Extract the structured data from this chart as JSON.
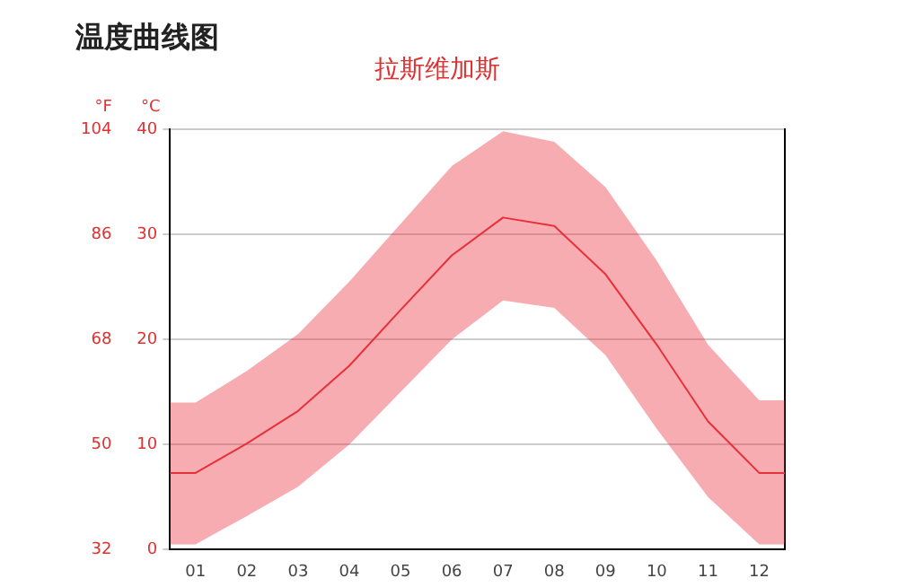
{
  "chart_data": {
    "type": "line",
    "title": "温度曲线图",
    "subtitle": "拉斯维加斯",
    "ylabel": "°C",
    "y2label": "°F",
    "xlim": [
      0.5,
      12.5
    ],
    "xticks": [
      {
        "value": 1,
        "label": "01"
      },
      {
        "value": 2,
        "label": "02"
      },
      {
        "value": 3,
        "label": "03"
      },
      {
        "value": 4,
        "label": "04"
      },
      {
        "value": 5,
        "label": "05"
      },
      {
        "value": 6,
        "label": "06"
      },
      {
        "value": 7,
        "label": "07"
      },
      {
        "value": 8,
        "label": "08"
      },
      {
        "value": 9,
        "label": "09"
      },
      {
        "value": 10,
        "label": "10"
      },
      {
        "value": 11,
        "label": "11"
      },
      {
        "value": 12,
        "label": "12"
      }
    ],
    "ylim": [
      0,
      40
    ],
    "yticks": [
      0,
      10,
      20,
      30,
      40
    ],
    "y2lim": [
      32,
      104
    ],
    "y2ticks": [
      32,
      50,
      68,
      86,
      104
    ],
    "grid": "y",
    "legend": false,
    "marker": "none",
    "line_style": "solid",
    "series": [
      {
        "color": "#e8303a",
        "x": [
          0.5,
          1,
          2,
          3,
          4,
          5,
          6,
          7,
          8,
          9,
          10,
          11,
          12,
          12.5
        ],
        "values": [
          7.3,
          7.3,
          10.1,
          13.2,
          17.5,
          22.8,
          28,
          31.6,
          30.8,
          26.2,
          19.5,
          12.2,
          7.3,
          7.3
        ],
        "lower": [
          0.5,
          0.5,
          3.2,
          6,
          10,
          15,
          20,
          23.7,
          23,
          18.5,
          11.5,
          5,
          0.5,
          0.5
        ],
        "upper": [
          14,
          14,
          17,
          20.5,
          25.5,
          31,
          36.5,
          39.8,
          38.8,
          34.5,
          27.5,
          19.5,
          14.2,
          14.2
        ]
      }
    ]
  }
}
